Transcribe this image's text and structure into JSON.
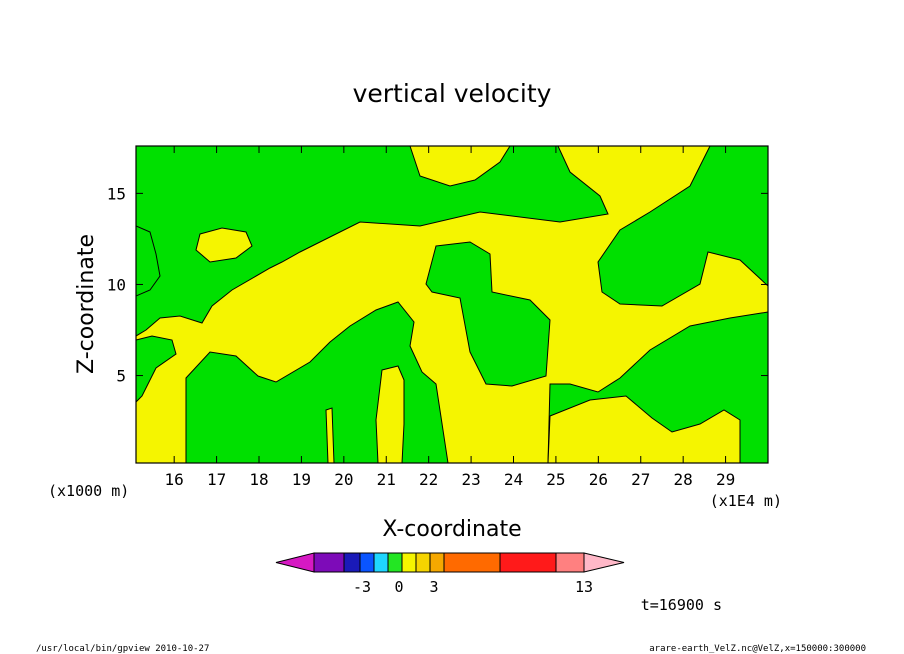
{
  "chart_data": {
    "type": "contour",
    "title": "vertical velocity",
    "xlabel": "X-coordinate",
    "ylabel": "Z-coordinate",
    "x_unit_left": "(x1000 m)",
    "x_unit_right": "(x1E4 m)",
    "xlim": [
      15.1,
      30.0
    ],
    "ylim": [
      0.2,
      17.6
    ],
    "x_ticks": [
      16,
      17,
      18,
      19,
      20,
      21,
      22,
      23,
      24,
      25,
      26,
      27,
      28,
      29
    ],
    "y_ticks": [
      5,
      10,
      15
    ],
    "fill_colors": {
      "positive_0_to_1": "#f5f500",
      "negative_-1_to_0": "#00e000"
    },
    "colorbar": {
      "colors": [
        "#d619c3",
        "#7d0bb8",
        "#1a1ab8",
        "#0a55ff",
        "#1fd6ff",
        "#23e623",
        "#f5f500",
        "#f5d400",
        "#f5a800",
        "#ff6a00",
        "#ff1a1a",
        "#ff8080",
        "#ffb8c8"
      ],
      "tick_labels": [
        "-3",
        "0",
        "3",
        "13"
      ]
    },
    "time_label": "t=16900 s"
  },
  "footer": {
    "left": "/usr/local/bin/gpview  2010-10-27",
    "right": "arare-earth_VelZ.nc@VelZ,x=150000:300000"
  }
}
